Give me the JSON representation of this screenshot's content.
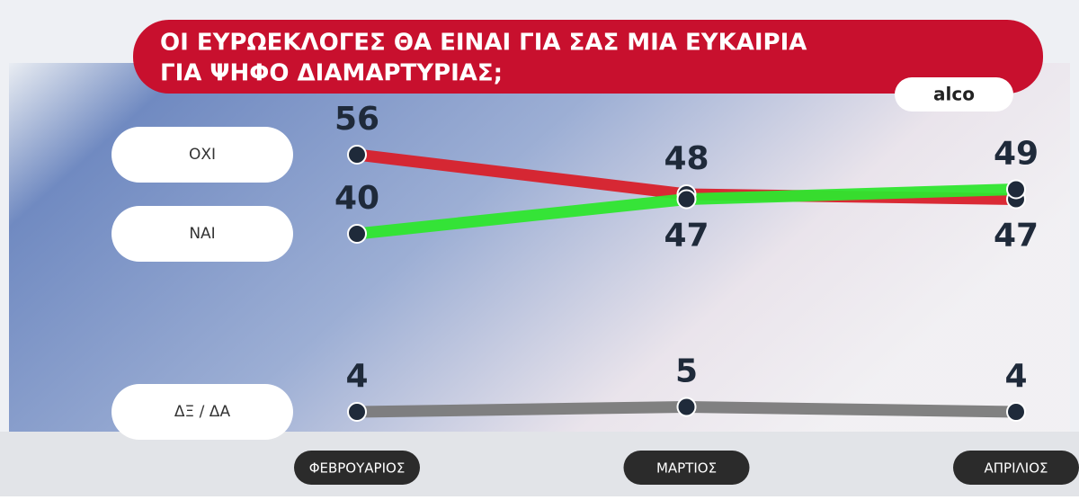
{
  "chart_data": {
    "type": "line",
    "title": [
      "ΟΙ ΕΥΡΩΕΚΛΟΓΕΣ ΘΑ ΕΙΝΑΙ ΓΙΑ ΣΑΣ ΜΙΑ ΕΥΚΑΙΡΙΑ",
      "ΓΙΑ ΨΗΦΟ ΔΙΑΜΑΡΤΥΡΙΑΣ;"
    ],
    "source": "alco",
    "categories": [
      "ΦΕΒΡΟΥΑΡΙΟΣ",
      "ΜΑΡΤΙΟΣ",
      "ΑΠΡΙΛΙΟΣ"
    ],
    "series": [
      {
        "name": "ΟΧΙ",
        "color": "#d8202a",
        "values": [
          56,
          48,
          47
        ]
      },
      {
        "name": "ΝΑΙ",
        "color": "#2ee62e",
        "values": [
          40,
          47,
          49
        ]
      },
      {
        "name": "ΔΞ / ΔΑ",
        "color": "#7a7a7a",
        "values": [
          4,
          5,
          4
        ]
      }
    ],
    "ylim": [
      0,
      60
    ]
  }
}
